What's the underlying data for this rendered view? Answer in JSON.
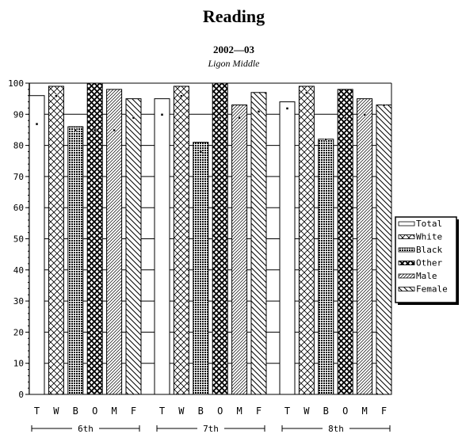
{
  "chart_data": {
    "type": "bar",
    "title": "Reading",
    "subtitle": "2002—03",
    "school": "Ligon Middle",
    "ylim": [
      0,
      100
    ],
    "yticks": [
      0,
      10,
      20,
      30,
      40,
      50,
      60,
      70,
      80,
      90,
      100
    ],
    "grid": true,
    "legend_position": "right",
    "groups": [
      {
        "label": "6th",
        "categories": [
          "T",
          "W",
          "B",
          "O",
          "M",
          "F"
        ],
        "values": [
          96,
          99,
          86,
          100,
          98,
          95
        ],
        "markers": [
          87,
          96,
          85,
          85,
          85,
          89
        ]
      },
      {
        "label": "7th",
        "categories": [
          "T",
          "W",
          "B",
          "O",
          "M",
          "F"
        ],
        "values": [
          95,
          99,
          81,
          100,
          93,
          97
        ],
        "markers": [
          90,
          96,
          78,
          89,
          89,
          91
        ]
      },
      {
        "label": "8th",
        "categories": [
          "T",
          "W",
          "B",
          "O",
          "M",
          "F"
        ],
        "values": [
          94,
          99,
          82,
          98,
          95,
          93
        ],
        "markers": [
          92,
          97,
          82,
          89,
          90,
          93
        ]
      }
    ],
    "legend": [
      "Total",
      "White",
      "Black",
      "Other",
      "Male",
      "Female"
    ],
    "patterns": [
      "blank",
      "crosshatch",
      "dense-grid",
      "double-cross",
      "diagonal-fine",
      "diagonal"
    ]
  }
}
